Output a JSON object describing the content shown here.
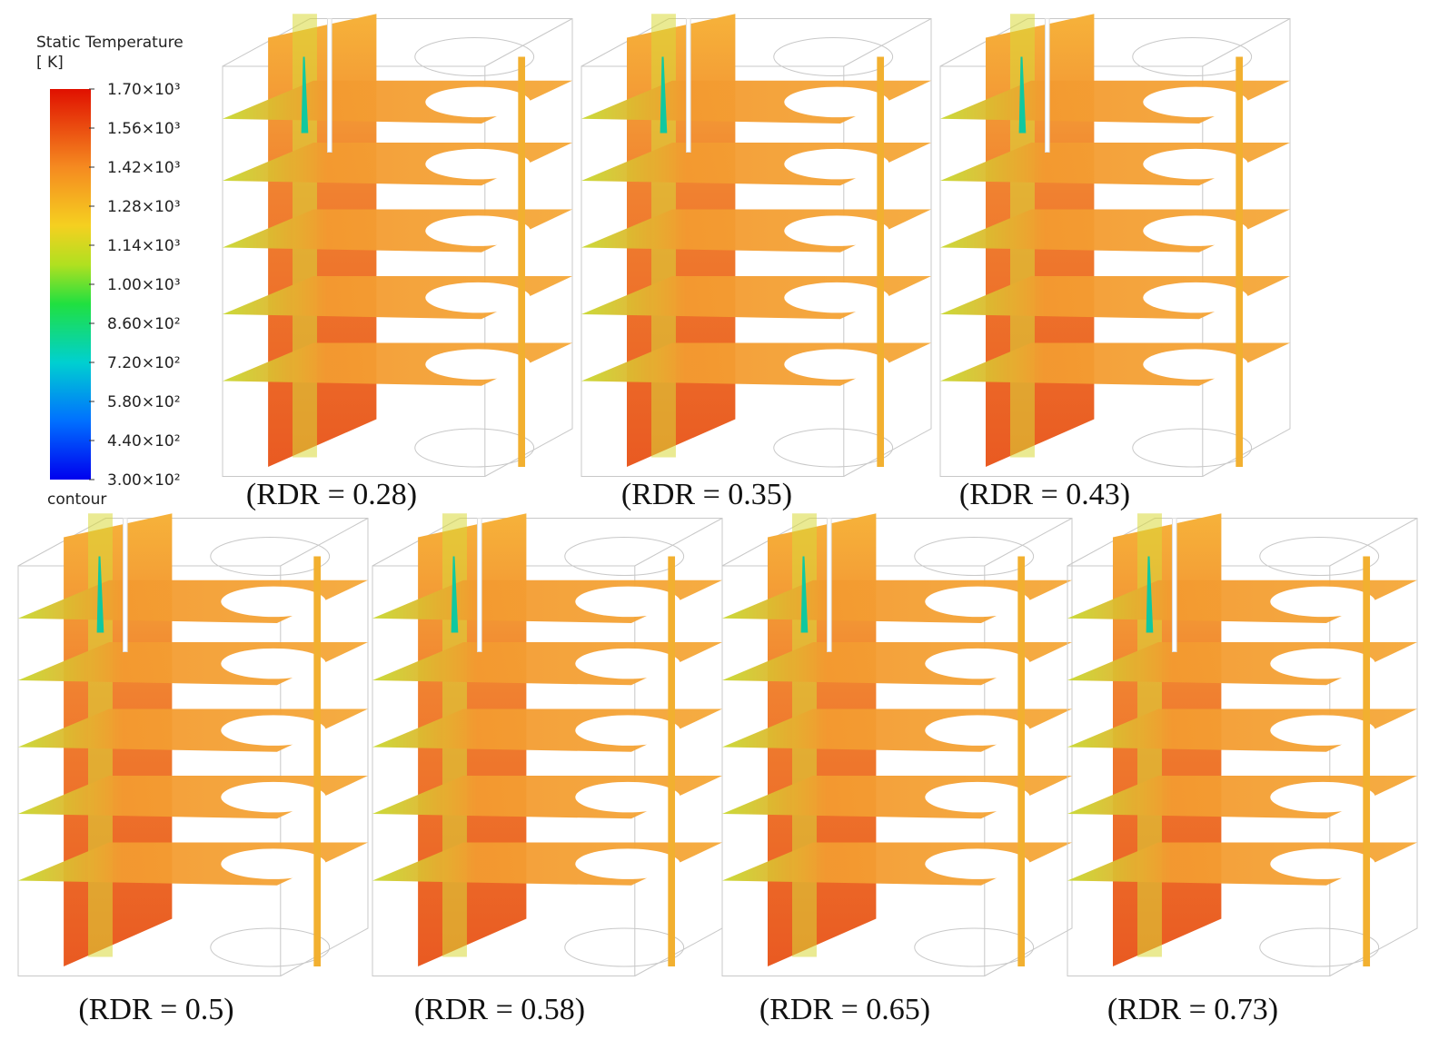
{
  "legend": {
    "title": "Static Temperature",
    "unit": "[ K]",
    "footer": "contour",
    "ticks": [
      {
        "value": 1700,
        "label": "1.70×10³"
      },
      {
        "value": 1560,
        "label": "1.56×10³"
      },
      {
        "value": 1420,
        "label": "1.42×10³"
      },
      {
        "value": 1280,
        "label": "1.28×10³"
      },
      {
        "value": 1140,
        "label": "1.14×10³"
      },
      {
        "value": 1000,
        "label": "1.00×10³"
      },
      {
        "value": 860,
        "label": "8.60×10²"
      },
      {
        "value": 720,
        "label": "7.20×10²"
      },
      {
        "value": 580,
        "label": "5.80×10²"
      },
      {
        "value": 440,
        "label": "4.40×10²"
      },
      {
        "value": 300,
        "label": "3.00×10²"
      }
    ]
  },
  "panels": [
    {
      "label": "(RDR = 0.28)"
    },
    {
      "label": "(RDR = 0.35)"
    },
    {
      "label": "(RDR = 0.43)"
    },
    {
      "label": "(RDR = 0.5)"
    },
    {
      "label": "(RDR = 0.58)"
    },
    {
      "label": "(RDR = 0.65)"
    },
    {
      "label": "(RDR = 0.73)"
    }
  ]
}
